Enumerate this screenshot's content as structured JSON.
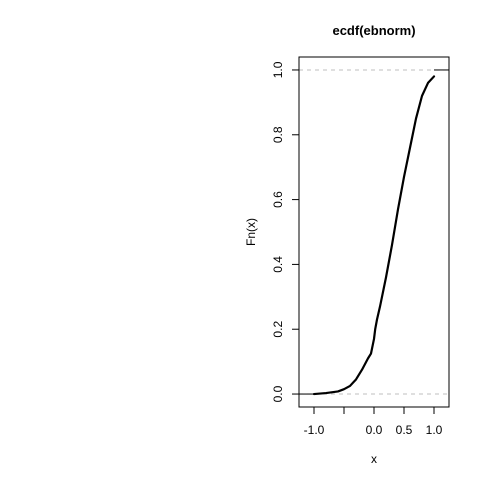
{
  "chart_data": {
    "type": "line",
    "title": "ecdf(ebnorm)",
    "xlabel": "x",
    "ylabel": "Fn(x)",
    "xlim": [
      -1.25,
      1.25
    ],
    "ylim": [
      -0.04,
      1.04
    ],
    "x_ticks": [
      -1.0,
      -0.5,
      0.0,
      0.5,
      1.0
    ],
    "x_tick_labels": [
      "-1.0",
      "",
      "0.0",
      "0.5",
      "1.0"
    ],
    "y_ticks": [
      0.0,
      0.2,
      0.4,
      0.6,
      0.8,
      1.0
    ],
    "y_tick_labels": [
      "0.0",
      "0.2",
      "0.4",
      "0.6",
      "0.8",
      "1.0"
    ],
    "reference_lines": [
      0,
      1
    ],
    "grid": false,
    "colors": {
      "line": "#000000",
      "reference": "#bfbfbf",
      "box": "#000000"
    },
    "series": [
      {
        "x": [
          -1.0,
          -0.8,
          -0.6,
          -0.5,
          -0.4,
          -0.3,
          -0.2,
          -0.1,
          -0.05,
          0.0,
          0.02,
          0.05,
          0.1,
          0.2,
          0.3,
          0.4,
          0.5,
          0.6,
          0.7,
          0.8,
          0.9,
          1.0
        ],
        "y": [
          0.0,
          0.003,
          0.008,
          0.015,
          0.025,
          0.045,
          0.075,
          0.11,
          0.125,
          0.17,
          0.2,
          0.23,
          0.27,
          0.36,
          0.46,
          0.57,
          0.67,
          0.76,
          0.85,
          0.92,
          0.96,
          0.98
        ]
      }
    ]
  }
}
